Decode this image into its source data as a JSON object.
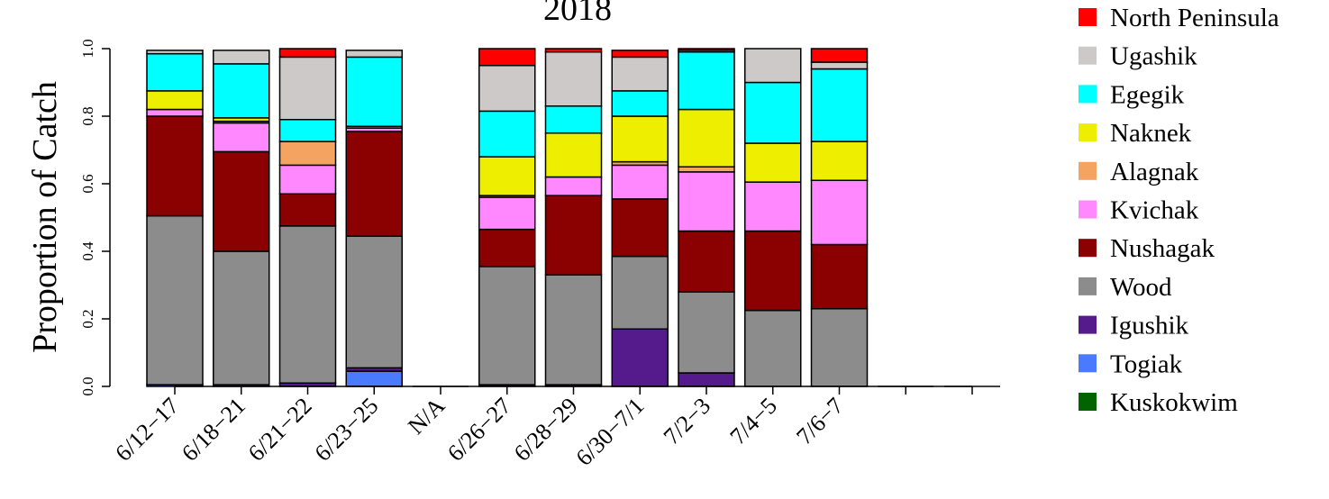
{
  "chart_data": {
    "type": "bar",
    "stacked": true,
    "title": "2018",
    "ylabel": "Proportion of Catch",
    "xlabel": "",
    "ylim": [
      0,
      1
    ],
    "yticks": [
      "0.0",
      "0.2",
      "0.4",
      "0.6",
      "0.8",
      "1.0"
    ],
    "legend_position": "right",
    "categories": [
      "6/12−17",
      "6/18−21",
      "6/21−22",
      "6/23−25",
      "N/A",
      "6/26−27",
      "6/28−29",
      "6/30−7/1",
      "7/2−3",
      "7/4−5",
      "7/6−7",
      "",
      ""
    ],
    "series": [
      {
        "name": "Kuskokwim",
        "color": "#006400",
        "values": [
          0,
          0,
          0,
          0,
          0,
          0,
          0,
          0,
          0,
          0,
          0,
          0,
          0
        ]
      },
      {
        "name": "Togiak",
        "color": "#4A7BFF",
        "values": [
          0.005,
          0.005,
          0,
          0.045,
          0,
          0,
          0,
          0,
          0,
          0,
          0,
          0,
          0
        ]
      },
      {
        "name": "Igushik",
        "color": "#551A8B",
        "values": [
          0,
          0,
          0.01,
          0.01,
          0,
          0.005,
          0.005,
          0.17,
          0.04,
          0,
          0,
          0,
          0
        ]
      },
      {
        "name": "Wood",
        "color": "#8C8C8C",
        "values": [
          0.5,
          0.395,
          0.465,
          0.39,
          0,
          0.35,
          0.325,
          0.215,
          0.24,
          0.225,
          0.23,
          0,
          0
        ]
      },
      {
        "name": "Nushagak",
        "color": "#8B0000",
        "values": [
          0.295,
          0.295,
          0.095,
          0.31,
          0,
          0.11,
          0.235,
          0.17,
          0.18,
          0.235,
          0.19,
          0,
          0
        ]
      },
      {
        "name": "Kvichak",
        "color": "#FF88FF",
        "values": [
          0.02,
          0.085,
          0.085,
          0.01,
          0,
          0.095,
          0.055,
          0.1,
          0.175,
          0.145,
          0.19,
          0,
          0
        ]
      },
      {
        "name": "Alagnak",
        "color": "#F4A460",
        "values": [
          0,
          0.005,
          0.07,
          0.005,
          0,
          0.005,
          0,
          0.01,
          0.015,
          0,
          0,
          0,
          0
        ]
      },
      {
        "name": "Naknek",
        "color": "#EEEE00",
        "values": [
          0.055,
          0.01,
          0,
          0,
          0,
          0.115,
          0.13,
          0.135,
          0.17,
          0.115,
          0.115,
          0,
          0
        ]
      },
      {
        "name": "Egegik",
        "color": "#00FFFF",
        "values": [
          0.11,
          0.16,
          0.065,
          0.205,
          0,
          0.135,
          0.08,
          0.075,
          0.17,
          0.18,
          0.215,
          0,
          0
        ]
      },
      {
        "name": "Ugashik",
        "color": "#CDC9C9",
        "values": [
          0.01,
          0.04,
          0.185,
          0.02,
          0,
          0.135,
          0.16,
          0.1,
          0.005,
          0.1,
          0.02,
          0,
          0
        ]
      },
      {
        "name": "North Peninsula",
        "color": "#FF0000",
        "values": [
          0,
          0,
          0.025,
          0,
          0,
          0.05,
          0.01,
          0.02,
          0.005,
          0,
          0.04,
          0,
          0
        ]
      }
    ],
    "legend_order": [
      "North Peninsula",
      "Ugashik",
      "Egegik",
      "Naknek",
      "Alagnak",
      "Kvichak",
      "Nushagak",
      "Wood",
      "Igushik",
      "Togiak",
      "Kuskokwim"
    ]
  }
}
